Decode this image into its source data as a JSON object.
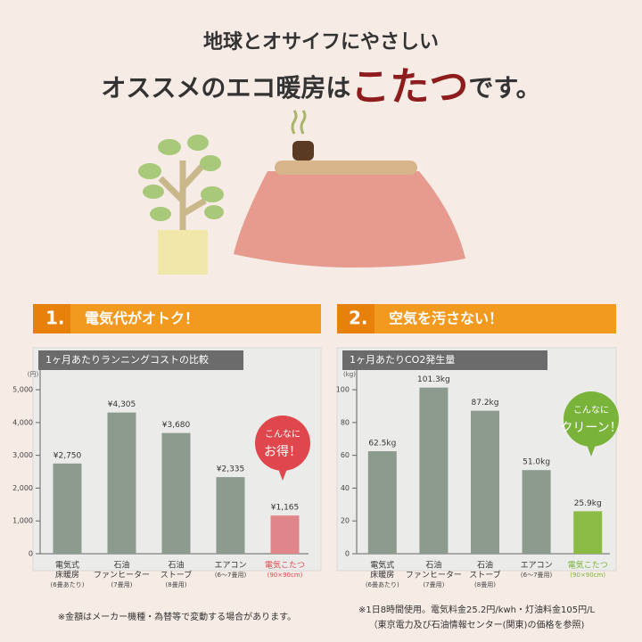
{
  "header": {
    "line1": "地球とオサイフにやさしい",
    "line2_start": "オススメのエコ暖房は",
    "line2_highlight": "こたつ",
    "line2_end": "です。"
  },
  "chart_data": [
    {
      "type": "bar",
      "section_number": "1.",
      "section_heading": "電気代がオトク！",
      "title": "1ヶ月あたりランニングコストの比較",
      "unit": "(円)",
      "categories": [
        [
          "電気式",
          "床暖房"
        ],
        [
          "石油",
          "ファンヒーター"
        ],
        [
          "石油",
          "ストーブ"
        ],
        [
          "エアコン"
        ],
        [
          "電気こたつ"
        ]
      ],
      "category_notes": [
        "(6畳あたり)",
        "(7畳用)",
        "(8畳用)",
        "(6～7畳用)",
        "(90×90cm)"
      ],
      "values": [
        2750,
        4305,
        3680,
        2335,
        1165
      ],
      "value_labels": [
        "¥2,750",
        "¥4,305",
        "¥3,680",
        "¥2,335",
        "¥1,165"
      ],
      "colors": [
        "#8d9a8e",
        "#8d9a8e",
        "#8d9a8e",
        "#8d9a8e",
        "#e0868a"
      ],
      "ylim": [
        0,
        5600
      ],
      "yticks": [
        0,
        {
          "value": 1000,
          "label": "1,000"
        },
        {
          "value": 2000,
          "label": "2,000"
        },
        {
          "value": 3000,
          "label": "3,000"
        },
        {
          "value": 4000,
          "label": "4,000"
        },
        {
          "value": 5000,
          "label": "5,000"
        }
      ],
      "callout": [
        "こんなに",
        "お得！"
      ],
      "callout_color": "#e0474c",
      "footnote": [
        "※金額はメーカー機種・為替等で変動する場合があります。"
      ]
    },
    {
      "type": "bar",
      "section_number": "2.",
      "section_heading": "空気を汚さない！",
      "title": "1ヶ月あたりCO2発生量",
      "unit": "(kg)",
      "categories": [
        [
          "電気式",
          "床暖房"
        ],
        [
          "石油",
          "ファンヒーター"
        ],
        [
          "石油",
          "ストーブ"
        ],
        [
          "エアコン"
        ],
        [
          "電気こたつ"
        ]
      ],
      "category_notes": [
        "(6畳あたり)",
        "(7畳用)",
        "(8畳用)",
        "(6～7畳用)",
        "(90×90cm)"
      ],
      "values": [
        62.5,
        101.3,
        87.2,
        51.0,
        25.9
      ],
      "value_labels": [
        "62.5kg",
        "101.3kg",
        "87.2kg",
        "51.0kg",
        "25.9kg"
      ],
      "colors": [
        "#8d9a8e",
        "#8d9a8e",
        "#8d9a8e",
        "#8d9a8e",
        "#8cbb45"
      ],
      "ylim": [
        0,
        112
      ],
      "yticks": [
        0,
        20,
        40,
        60,
        80,
        100
      ],
      "callout": [
        "こんなに",
        "クリーン！"
      ],
      "callout_color": "#7ab33a",
      "footnote": [
        "※1日8時間使用。電気料金25.2円/kwh・灯油料金105円/L",
        "（東京電力及び石油情報センター(関東)の価格を参照)"
      ]
    }
  ]
}
